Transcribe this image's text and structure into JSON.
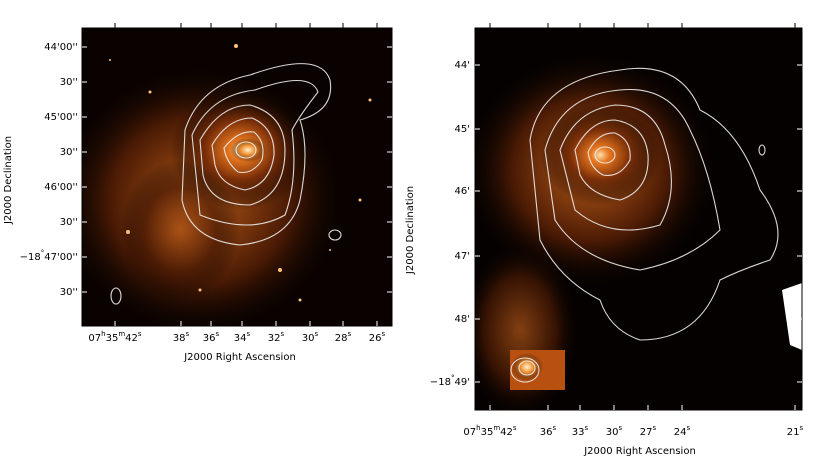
{
  "panels": [
    {
      "y_axis": {
        "label": "J2000 Declination",
        "ticks": [
          "44'00''",
          "30''",
          "45'00''",
          "30''",
          "46'00''",
          "30''",
          "−18°47'00''",
          "30''"
        ]
      },
      "x_axis": {
        "label": "J2000 Right Ascension",
        "ticks": [
          "07h35m42s",
          "38s",
          "36s",
          "34s",
          "32s",
          "30s",
          "28s",
          "26s"
        ]
      }
    },
    {
      "y_axis": {
        "label": "J2000 Declination",
        "ticks": [
          "44'",
          "45'",
          "46'",
          "47'",
          "48'",
          "−18°49'"
        ]
      },
      "x_axis": {
        "label": "J2000 Right Ascension",
        "ticks": [
          "07h35m42s",
          "36s",
          "33s",
          "30s",
          "27s",
          "24s",
          "21s"
        ]
      }
    }
  ]
}
